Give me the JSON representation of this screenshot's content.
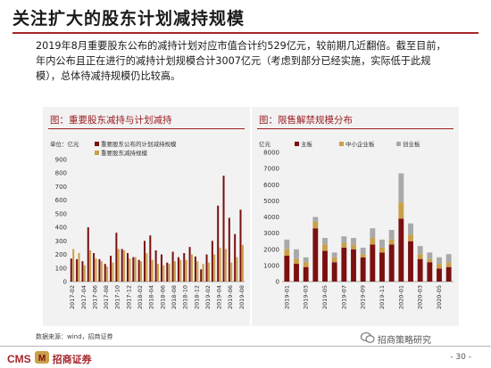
{
  "page": {
    "title": "关注扩大的股东计划减持规模",
    "body": "2019年8月重要股东公布的减持计划对应市值合计约529亿元，较前期几近翻倍。截至目前，年内公布且正在进行的减持计划规模合计3007亿元（考虑到部分已经实施，实际低于此规模），总体待减持规模仍比较高。",
    "source": "数据来源：wind，招商证券",
    "watermark": "招商策略研究",
    "logo_cms": "CMS",
    "logo_name": "招商证券",
    "page_number": "- 30 -"
  },
  "colors": {
    "red": "#7b1010",
    "gold": "#c9a049",
    "gray": "#a9a9a9",
    "title_rule": "#a5262c"
  },
  "chart_data": [
    {
      "type": "bar",
      "panel_title": "图：重要股东减持与计划减持",
      "unit": "单位：亿元",
      "categories": [
        "2017-02",
        "2017-03",
        "2017-04",
        "2017-05",
        "2017-06",
        "2017-07",
        "2017-08",
        "2017-09",
        "2017-10",
        "2017-11",
        "2017-12",
        "2018-01",
        "2018-02",
        "2018-03",
        "2018-04",
        "2018-05",
        "2018-06",
        "2018-07",
        "2018-08",
        "2018-09",
        "2018-10",
        "2018-11",
        "2018-12",
        "2019-01",
        "2019-02",
        "2019-03",
        "2019-04",
        "2019-05",
        "2019-06",
        "2019-07",
        "2019-08"
      ],
      "x_tick_labels": [
        "2017-02",
        "2017-04",
        "2017-06",
        "2017-08",
        "2017-10",
        "2017-12",
        "2018-02",
        "2018-04",
        "2018-06",
        "2018-08",
        "2018-10",
        "2018-12",
        "2019-02",
        "2019-04",
        "2019-06",
        "2019-08"
      ],
      "series": [
        {
          "name": "重要股东公布的计划减持规模",
          "color": "#7b1010",
          "values": [
            170,
            165,
            150,
            400,
            210,
            165,
            130,
            190,
            360,
            240,
            210,
            180,
            160,
            300,
            340,
            230,
            200,
            140,
            220,
            180,
            210,
            255,
            185,
            90,
            200,
            300,
            560,
            780,
            470,
            350,
            530
          ]
        },
        {
          "name": "重要股东减持规模",
          "color": "#c9a049",
          "values": [
            240,
            210,
            120,
            230,
            170,
            150,
            110,
            140,
            240,
            230,
            170,
            180,
            150,
            210,
            160,
            130,
            120,
            130,
            150,
            160,
            160,
            200,
            150,
            130,
            140,
            200,
            250,
            240,
            140,
            180,
            270
          ]
        }
      ],
      "ylim": [
        0,
        900
      ],
      "yticks": [
        0,
        100,
        200,
        300,
        400,
        500,
        600,
        700,
        800,
        900
      ],
      "legend_position": "top-left",
      "grid": false
    },
    {
      "type": "bar",
      "stacked": true,
      "panel_title": "图：限售解禁规模分布",
      "unit": "亿元",
      "categories": [
        "2019-01",
        "2019-02",
        "2019-03",
        "2019-04",
        "2019-05",
        "2019-06",
        "2019-07",
        "2019-08",
        "2019-09",
        "2019-10",
        "2019-11",
        "2019-12",
        "2020-01",
        "2020-02",
        "2020-03",
        "2020-04",
        "2020-05",
        "2020-06"
      ],
      "x_tick_labels": [
        "2019-01",
        "2019-03",
        "2019-05",
        "2019-07",
        "2019-09",
        "2019-11",
        "2020-01",
        "2020-03",
        "2020-05"
      ],
      "series": [
        {
          "name": "主板",
          "color": "#7b1010",
          "values": [
            1600,
            1100,
            900,
            3300,
            1900,
            1200,
            2100,
            2000,
            1500,
            2300,
            1800,
            2300,
            3900,
            2500,
            1400,
            1200,
            800,
            900
          ]
        },
        {
          "name": "中小企业板",
          "color": "#c9a049",
          "values": [
            400,
            300,
            300,
            400,
            400,
            300,
            300,
            300,
            200,
            400,
            300,
            300,
            1000,
            400,
            300,
            200,
            300,
            300
          ]
        },
        {
          "name": "创业板",
          "color": "#a9a9a9",
          "values": [
            600,
            600,
            300,
            300,
            400,
            300,
            400,
            400,
            400,
            600,
            500,
            600,
            1800,
            700,
            500,
            400,
            400,
            500
          ]
        }
      ],
      "ylim": [
        0,
        8000
      ],
      "yticks": [
        0,
        1000,
        2000,
        3000,
        4000,
        5000,
        6000,
        7000,
        8000
      ],
      "legend_position": "top",
      "grid": false
    }
  ]
}
